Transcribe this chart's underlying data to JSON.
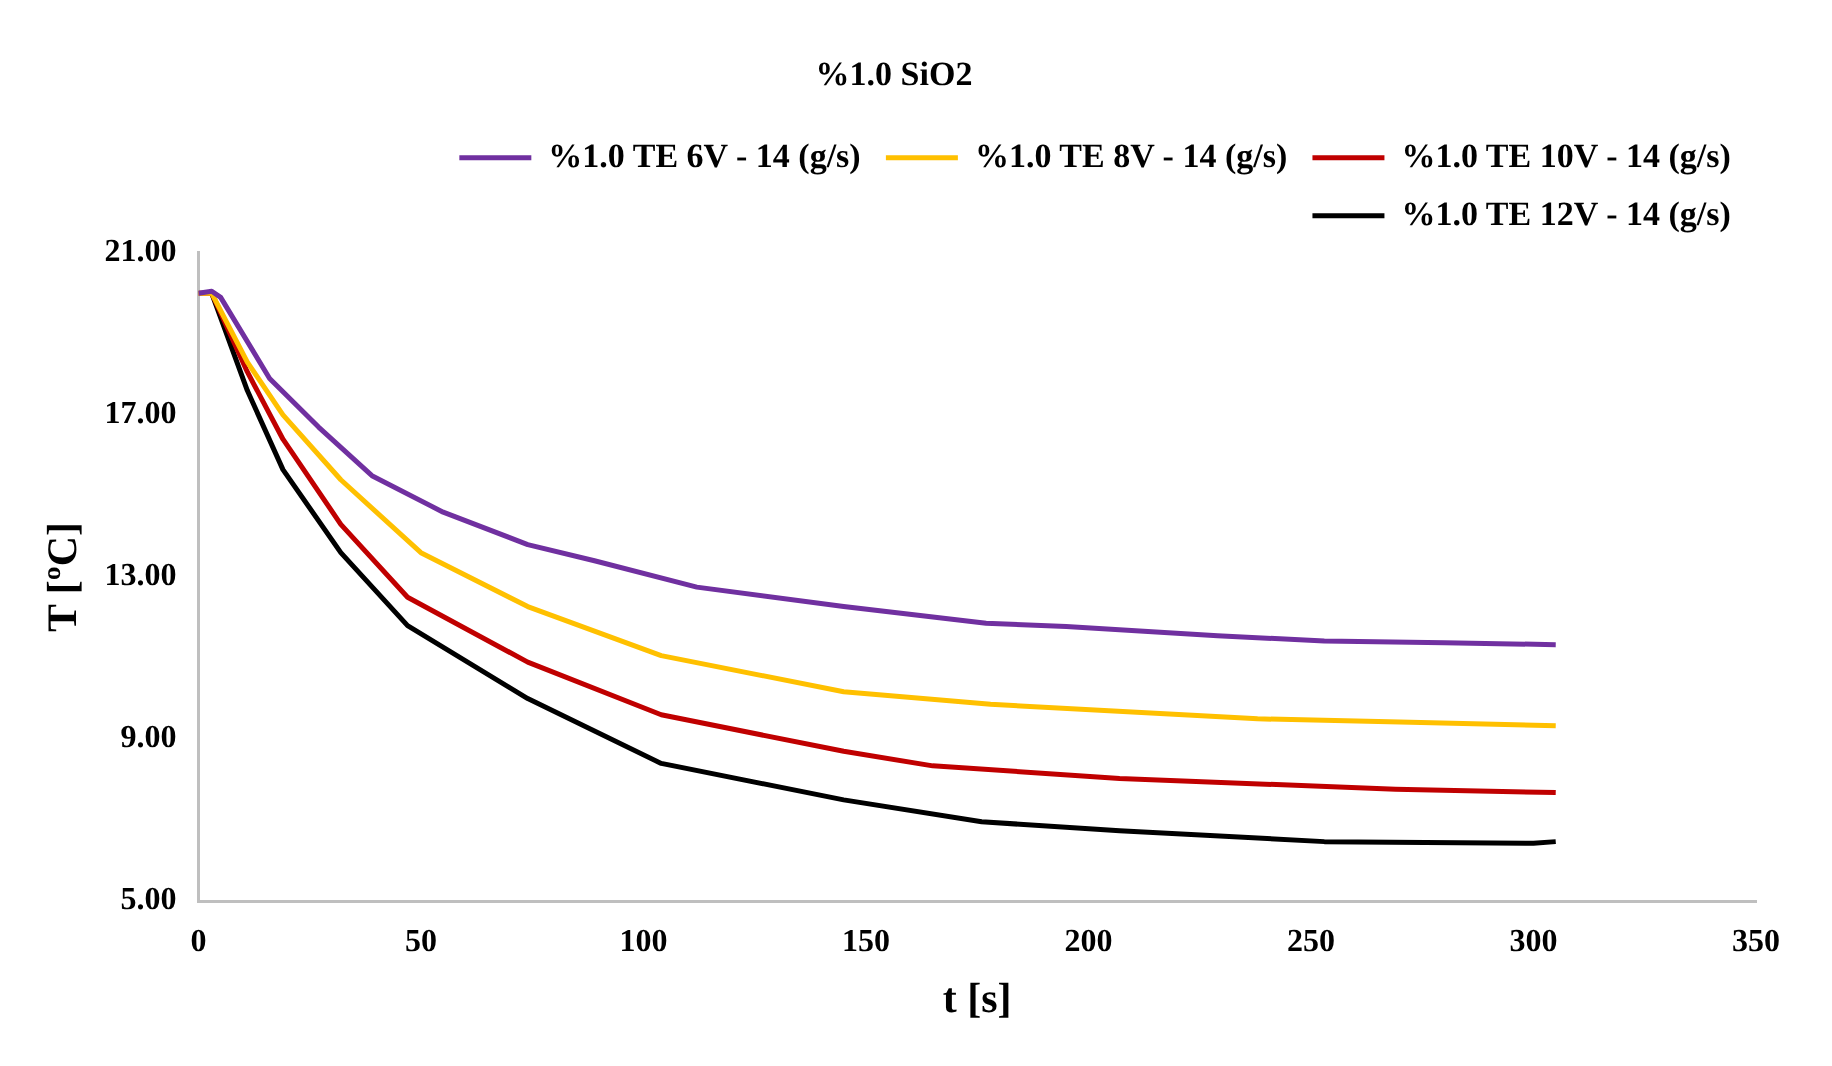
{
  "chart_data": {
    "type": "line",
    "title": "%1.0 SiO2",
    "xlabel": "t [s]",
    "ylabel": "T [ºC]",
    "xlim": [
      0,
      350
    ],
    "xticks": [
      0,
      50,
      100,
      150,
      200,
      250,
      300,
      350
    ],
    "ylim": [
      5,
      21
    ],
    "yticks": [
      {
        "value": 5,
        "label": "5.00"
      },
      {
        "value": 9,
        "label": "9.00"
      },
      {
        "value": 13,
        "label": "13.00"
      },
      {
        "value": 17,
        "label": "17.00"
      },
      {
        "value": 21,
        "label": "21.00"
      }
    ],
    "grid": false,
    "legend": "top right",
    "marker": "none",
    "line_style": "solid",
    "series": [
      {
        "name": "%1.0 TE 6V - 14 (g/s)",
        "color": "#7030a0",
        "x": [
          0,
          3,
          5,
          16,
          27,
          39,
          55,
          74,
          89,
          112,
          145,
          177,
          195,
          229,
          253,
          280,
          305
        ],
        "values": [
          20.0,
          20.05,
          19.9,
          17.9,
          16.7,
          15.5,
          14.6,
          13.8,
          13.4,
          12.75,
          12.27,
          11.86,
          11.78,
          11.55,
          11.42,
          11.38,
          11.33
        ]
      },
      {
        "name": "%1.0 TE 8V - 14 (g/s)",
        "color": "#ffc000",
        "x": [
          0,
          3,
          11,
          19,
          32,
          50,
          74,
          104,
          145,
          178,
          238,
          270,
          305
        ],
        "values": [
          20.0,
          20.0,
          18.3,
          17.0,
          15.4,
          13.6,
          12.27,
          11.06,
          10.17,
          9.86,
          9.5,
          9.42,
          9.33
        ]
      },
      {
        "name": "%1.0 TE 10V - 14 (g/s)",
        "color": "#c00000",
        "x": [
          0,
          3,
          11,
          19,
          32,
          47,
          74,
          104,
          145,
          165,
          207,
          269,
          305
        ],
        "values": [
          20.0,
          20.0,
          18.06,
          16.4,
          14.3,
          12.5,
          10.9,
          9.6,
          8.7,
          8.34,
          8.03,
          7.76,
          7.68
        ]
      },
      {
        "name": "%1.0 TE 12V - 14 (g/s)",
        "color": "#000000",
        "x": [
          3,
          11,
          19,
          32,
          47,
          74,
          104,
          145,
          176,
          207,
          253,
          300,
          305
        ],
        "values": [
          20.0,
          17.6,
          15.65,
          13.6,
          11.8,
          10.0,
          8.4,
          7.5,
          6.96,
          6.74,
          6.47,
          6.43,
          6.47
        ]
      }
    ]
  }
}
